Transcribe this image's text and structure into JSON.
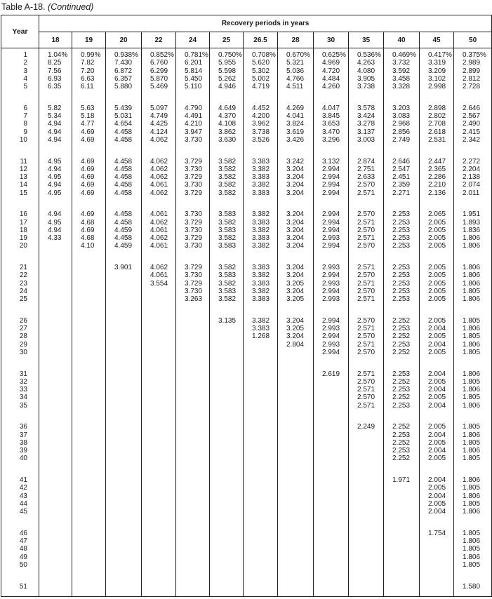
{
  "caption": {
    "label": "Table A-18.",
    "note": "(Continued)"
  },
  "header": {
    "year_label": "Year",
    "group_label": "Recovery periods in years",
    "columns": [
      "18",
      "19",
      "20",
      "22",
      "24",
      "25",
      "26.5",
      "28",
      "30",
      "35",
      "40",
      "45",
      "50"
    ]
  },
  "rows": [
    {
      "year": "1",
      "values": [
        "1.04%",
        "0.99%",
        "0.938%",
        "0.852%",
        "0.781%",
        "0.750%",
        "0.708%",
        "0.670%",
        "0.625%",
        "0.536%",
        "0.469%",
        "0.417%",
        "0.375%"
      ]
    },
    {
      "year": "2",
      "values": [
        "8.25",
        "7.82",
        "7.430",
        "6.760",
        "6.201",
        "5.955",
        "5.620",
        "5.321",
        "4.969",
        "4.263",
        "3.732",
        "3.319",
        "2.989"
      ]
    },
    {
      "year": "3",
      "values": [
        "7.56",
        "7.20",
        "6.872",
        "6.299",
        "5.814",
        "5.598",
        "5.302",
        "5.036",
        "4.720",
        "4.080",
        "3.592",
        "3.209",
        "2.899"
      ]
    },
    {
      "year": "4",
      "values": [
        "6.93",
        "6.63",
        "6.357",
        "5.870",
        "5.450",
        "5.262",
        "5.002",
        "4.766",
        "4.484",
        "3.905",
        "3.458",
        "3.102",
        "2.812"
      ]
    },
    {
      "year": "5",
      "values": [
        "6.35",
        "6.11",
        "5.880",
        "5.469",
        "5.110",
        "4.946",
        "4.719",
        "4.511",
        "4.260",
        "3.738",
        "3.328",
        "2.998",
        "2.728"
      ]
    },
    {
      "year": "6",
      "values": [
        "5.82",
        "5.63",
        "5.439",
        "5.097",
        "4.790",
        "4.649",
        "4.452",
        "4.269",
        "4.047",
        "3.578",
        "3.203",
        "2.898",
        "2.646"
      ]
    },
    {
      "year": "7",
      "values": [
        "5.34",
        "5.18",
        "5.031",
        "4.749",
        "4.491",
        "4.370",
        "4.200",
        "4.041",
        "3.845",
        "3.424",
        "3.083",
        "2.802",
        "2.567"
      ]
    },
    {
      "year": "8",
      "values": [
        "4.94",
        "4.77",
        "4.654",
        "4.425",
        "4.210",
        "4.108",
        "3.962",
        "3.824",
        "3.653",
        "3.278",
        "2.968",
        "2.708",
        "2.490"
      ]
    },
    {
      "year": "9",
      "values": [
        "4.94",
        "4.69",
        "4.458",
        "4.124",
        "3.947",
        "3.862",
        "3.738",
        "3.619",
        "3.470",
        "3.137",
        "2.856",
        "2.618",
        "2.415"
      ]
    },
    {
      "year": "10",
      "values": [
        "4.94",
        "4.69",
        "4.458",
        "4.062",
        "3.730",
        "3.630",
        "3.526",
        "3.426",
        "3.296",
        "3.003",
        "2.749",
        "2.531",
        "2.342"
      ]
    },
    {
      "year": "11",
      "values": [
        "4.95",
        "4.69",
        "4.458",
        "4.062",
        "3.729",
        "3.582",
        "3.383",
        "3.242",
        "3.132",
        "2.874",
        "2.646",
        "2.447",
        "2.272"
      ]
    },
    {
      "year": "12",
      "values": [
        "4.94",
        "4.69",
        "4.458",
        "4.062",
        "3.730",
        "3.582",
        "3.382",
        "3.204",
        "2.994",
        "2.751",
        "2.547",
        "2.365",
        "2.204"
      ]
    },
    {
      "year": "13",
      "values": [
        "4.95",
        "4.69",
        "4.458",
        "4.062",
        "3.729",
        "3.582",
        "3.383",
        "3.204",
        "2.994",
        "2.633",
        "2.451",
        "2.286",
        "2.138"
      ]
    },
    {
      "year": "14",
      "values": [
        "4.94",
        "4.69",
        "4.458",
        "4.061",
        "3.730",
        "3.582",
        "3.382",
        "3.204",
        "2.994",
        "2.570",
        "2.359",
        "2.210",
        "2.074"
      ]
    },
    {
      "year": "15",
      "values": [
        "4.95",
        "4.69",
        "4.458",
        "4.062",
        "3.729",
        "3.582",
        "3.383",
        "3.204",
        "2.994",
        "2.571",
        "2.271",
        "2.136",
        "2.011"
      ]
    },
    {
      "year": "16",
      "values": [
        "4.94",
        "4.69",
        "4.458",
        "4.061",
        "3.730",
        "3.583",
        "3.382",
        "3.204",
        "2.994",
        "2.570",
        "2.253",
        "2.065",
        "1.951"
      ]
    },
    {
      "year": "17",
      "values": [
        "4.95",
        "4.68",
        "4.458",
        "4.062",
        "3.729",
        "3.582",
        "3.383",
        "3.204",
        "2.994",
        "2.571",
        "2.253",
        "2.005",
        "1.893"
      ]
    },
    {
      "year": "18",
      "values": [
        "4.94",
        "4.69",
        "4.459",
        "4.061",
        "3.730",
        "3.583",
        "3.382",
        "3.204",
        "2.994",
        "2.570",
        "2.253",
        "2.005",
        "1.836"
      ]
    },
    {
      "year": "19",
      "values": [
        "4.33",
        "4.68",
        "4.458",
        "4.062",
        "3.729",
        "3.582",
        "3.383",
        "3.204",
        "2.993",
        "2.571",
        "2.253",
        "2.005",
        "1.806"
      ]
    },
    {
      "year": "20",
      "values": [
        "",
        "4.10",
        "4.459",
        "4.061",
        "3.730",
        "3.583",
        "3.382",
        "3.204",
        "2.994",
        "2.570",
        "2.253",
        "2.005",
        "1.806"
      ]
    },
    {
      "year": "21",
      "values": [
        "",
        "",
        "3.901",
        "4.062",
        "3.729",
        "3.582",
        "3.383",
        "3.204",
        "2.993",
        "2.571",
        "2.253",
        "2.005",
        "1.806"
      ]
    },
    {
      "year": "22",
      "values": [
        "",
        "",
        "",
        "4.061",
        "3.730",
        "3.583",
        "3.382",
        "3.204",
        "2.994",
        "2.570",
        "2.253",
        "2.005",
        "1.806"
      ]
    },
    {
      "year": "23",
      "values": [
        "",
        "",
        "",
        "3.554",
        "3.729",
        "3.582",
        "3.383",
        "3.205",
        "2.993",
        "2.571",
        "2.253",
        "2.005",
        "1.806"
      ]
    },
    {
      "year": "24",
      "values": [
        "",
        "",
        "",
        "",
        "3.730",
        "3.583",
        "3.382",
        "3.204",
        "2.994",
        "2.570",
        "2.253",
        "2.005",
        "1.805"
      ]
    },
    {
      "year": "25",
      "values": [
        "",
        "",
        "",
        "",
        "3.263",
        "3.582",
        "3.383",
        "3.205",
        "2.993",
        "2.571",
        "2.253",
        "2.005",
        "1.806"
      ]
    },
    {
      "year": "26",
      "values": [
        "",
        "",
        "",
        "",
        "",
        "3.135",
        "3.382",
        "3.204",
        "2.994",
        "2.570",
        "2.252",
        "2.005",
        "1.805"
      ]
    },
    {
      "year": "27",
      "values": [
        "",
        "",
        "",
        "",
        "",
        "",
        "3.383",
        "3.205",
        "2.993",
        "2.571",
        "2.253",
        "2.004",
        "1.806"
      ]
    },
    {
      "year": "28",
      "values": [
        "",
        "",
        "",
        "",
        "",
        "",
        "1.268",
        "3.204",
        "2.994",
        "2.570",
        "2.252",
        "2.005",
        "1.805"
      ]
    },
    {
      "year": "29",
      "values": [
        "",
        "",
        "",
        "",
        "",
        "",
        "",
        "2.804",
        "2.993",
        "2.571",
        "2.253",
        "2.004",
        "1.806"
      ]
    },
    {
      "year": "30",
      "values": [
        "",
        "",
        "",
        "",
        "",
        "",
        "",
        "",
        "2.994",
        "2.570",
        "2.252",
        "2.005",
        "1.805"
      ]
    },
    {
      "year": "31",
      "values": [
        "",
        "",
        "",
        "",
        "",
        "",
        "",
        "",
        "2.619",
        "2.571",
        "2.253",
        "2.004",
        "1.806"
      ]
    },
    {
      "year": "32",
      "values": [
        "",
        "",
        "",
        "",
        "",
        "",
        "",
        "",
        "",
        "2.570",
        "2.252",
        "2.005",
        "1.805"
      ]
    },
    {
      "year": "33",
      "values": [
        "",
        "",
        "",
        "",
        "",
        "",
        "",
        "",
        "",
        "2.571",
        "2.253",
        "2.004",
        "1.806"
      ]
    },
    {
      "year": "34",
      "values": [
        "",
        "",
        "",
        "",
        "",
        "",
        "",
        "",
        "",
        "2.570",
        "2.252",
        "2.005",
        "1.805"
      ]
    },
    {
      "year": "35",
      "values": [
        "",
        "",
        "",
        "",
        "",
        "",
        "",
        "",
        "",
        "2.571",
        "2.253",
        "2.004",
        "1.806"
      ]
    },
    {
      "year": "36",
      "values": [
        "",
        "",
        "",
        "",
        "",
        "",
        "",
        "",
        "",
        "2.249",
        "2.252",
        "2.005",
        "1.805"
      ]
    },
    {
      "year": "37",
      "values": [
        "",
        "",
        "",
        "",
        "",
        "",
        "",
        "",
        "",
        "",
        "2.253",
        "2.004",
        "1.806"
      ]
    },
    {
      "year": "38",
      "values": [
        "",
        "",
        "",
        "",
        "",
        "",
        "",
        "",
        "",
        "",
        "2.252",
        "2.005",
        "1.805"
      ]
    },
    {
      "year": "39",
      "values": [
        "",
        "",
        "",
        "",
        "",
        "",
        "",
        "",
        "",
        "",
        "2.253",
        "2.004",
        "1.806"
      ]
    },
    {
      "year": "40",
      "values": [
        "",
        "",
        "",
        "",
        "",
        "",
        "",
        "",
        "",
        "",
        "2.252",
        "2.005",
        "1.805"
      ]
    },
    {
      "year": "41",
      "values": [
        "",
        "",
        "",
        "",
        "",
        "",
        "",
        "",
        "",
        "",
        "1.971",
        "2.004",
        "1.806"
      ]
    },
    {
      "year": "42",
      "values": [
        "",
        "",
        "",
        "",
        "",
        "",
        "",
        "",
        "",
        "",
        "",
        "2.005",
        "1.805"
      ]
    },
    {
      "year": "43",
      "values": [
        "",
        "",
        "",
        "",
        "",
        "",
        "",
        "",
        "",
        "",
        "",
        "2.004",
        "1.806"
      ]
    },
    {
      "year": "44",
      "values": [
        "",
        "",
        "",
        "",
        "",
        "",
        "",
        "",
        "",
        "",
        "",
        "2.005",
        "1.805"
      ]
    },
    {
      "year": "45",
      "values": [
        "",
        "",
        "",
        "",
        "",
        "",
        "",
        "",
        "",
        "",
        "",
        "2.004",
        "1.806"
      ]
    },
    {
      "year": "46",
      "values": [
        "",
        "",
        "",
        "",
        "",
        "",
        "",
        "",
        "",
        "",
        "",
        "1.754",
        "1.805"
      ]
    },
    {
      "year": "47",
      "values": [
        "",
        "",
        "",
        "",
        "",
        "",
        "",
        "",
        "",
        "",
        "",
        "",
        "1.806"
      ]
    },
    {
      "year": "48",
      "values": [
        "",
        "",
        "",
        "",
        "",
        "",
        "",
        "",
        "",
        "",
        "",
        "",
        "1.805"
      ]
    },
    {
      "year": "49",
      "values": [
        "",
        "",
        "",
        "",
        "",
        "",
        "",
        "",
        "",
        "",
        "",
        "",
        "1.806"
      ]
    },
    {
      "year": "50",
      "values": [
        "",
        "",
        "",
        "",
        "",
        "",
        "",
        "",
        "",
        "",
        "",
        "",
        "1.805"
      ]
    },
    {
      "year": "51",
      "values": [
        "",
        "",
        "",
        "",
        "",
        "",
        "",
        "",
        "",
        "",
        "",
        "",
        "1.580"
      ]
    }
  ]
}
